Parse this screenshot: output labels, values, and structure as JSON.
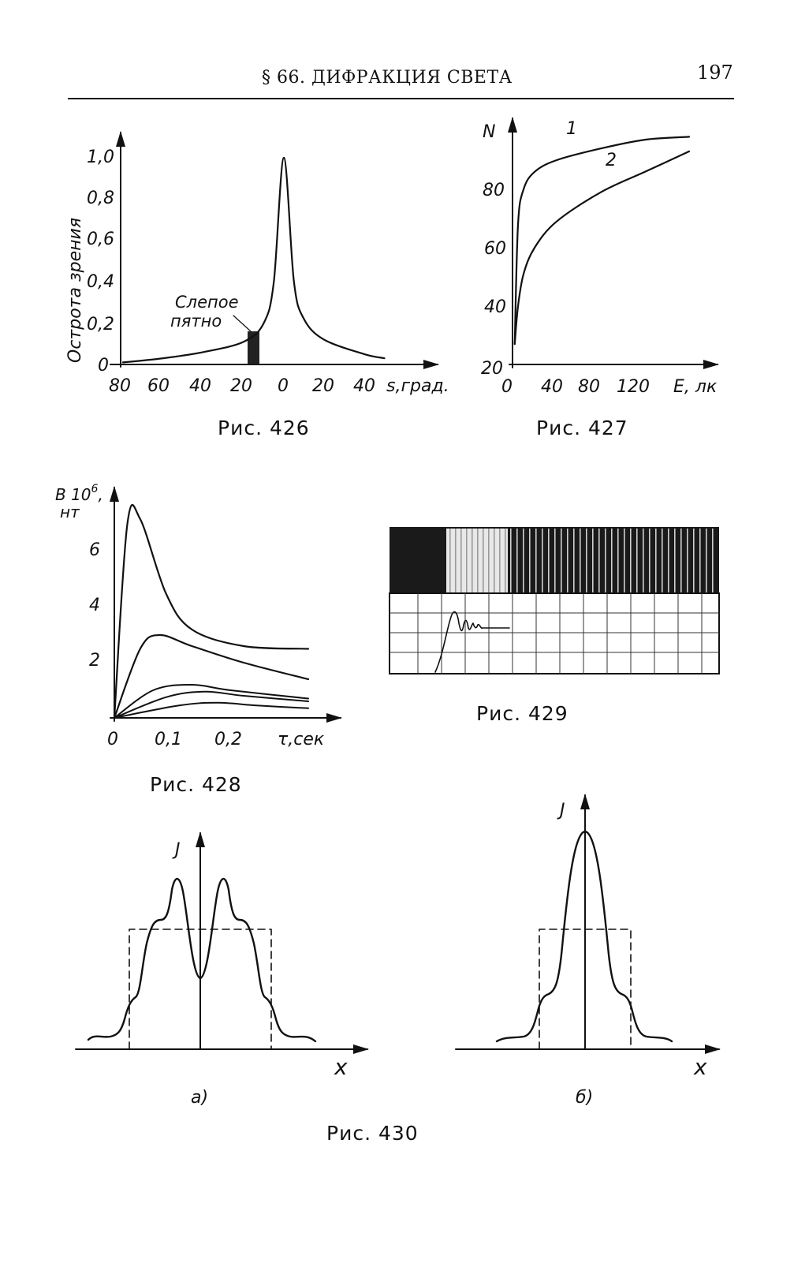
{
  "header": {
    "title": "§ 66. ДИФРАКЦИЯ СВЕТА",
    "page_number": "197"
  },
  "figures": {
    "fig426": {
      "caption": "Рис. 426",
      "ylabel": "Острота зрения",
      "xlabel": "s,град.",
      "annotation": [
        "Слепое",
        "пятно"
      ],
      "yticks": [
        "0",
        "0,2",
        "0,4",
        "0,6",
        "0,8",
        "1,0"
      ],
      "xticks": [
        "80",
        "60",
        "40",
        "20",
        "0",
        "20",
        "40"
      ]
    },
    "fig427": {
      "caption": "Рис. 427",
      "ylabel": "N",
      "xlabel": "E, лк",
      "yticks": [
        "20",
        "40",
        "60",
        "80"
      ],
      "xticks": [
        "0",
        "40",
        "80",
        "120"
      ],
      "series_labels": [
        "1",
        "2"
      ]
    },
    "fig428": {
      "caption": "Рис. 428",
      "ylabel": [
        "B 10",
        "6",
        ",",
        "нт"
      ],
      "xlabel": "τ,сек",
      "yticks": [
        "2",
        "4",
        "6"
      ],
      "xticks": [
        "0",
        "0,1",
        "0,2"
      ]
    },
    "fig429": {
      "caption": "Рис. 429"
    },
    "fig430": {
      "caption": "Рис. 430",
      "panel_a_label": "а)",
      "panel_b_label": "б)",
      "ylabel": "J",
      "xlabel": "x"
    }
  },
  "chart_data": [
    {
      "type": "line",
      "title": "Рис. 426",
      "xlabel": "s,град.",
      "ylabel": "Острота зрения",
      "series": [
        {
          "name": "",
          "x": [
            -80,
            -60,
            -40,
            -20,
            -10,
            -5,
            0,
            5,
            10,
            20,
            40,
            50
          ],
          "values": [
            0.01,
            0.03,
            0.06,
            0.11,
            0.2,
            0.4,
            1.0,
            0.4,
            0.22,
            0.12,
            0.05,
            0.03
          ]
        }
      ],
      "ylim": [
        0,
        1.0
      ]
    },
    {
      "type": "line",
      "title": "Рис. 427",
      "xlabel": "E, лк",
      "ylabel": "N",
      "series": [
        {
          "name": "1",
          "x": [
            2,
            5,
            10,
            20,
            40,
            80,
            120,
            160
          ],
          "values": [
            27,
            68,
            80,
            86,
            90,
            94,
            97,
            98
          ]
        },
        {
          "name": "2",
          "x": [
            2,
            5,
            10,
            20,
            40,
            80,
            120,
            160
          ],
          "values": [
            27,
            40,
            51,
            60,
            69,
            79,
            86,
            93
          ]
        }
      ],
      "ylim": [
        20,
        100
      ]
    },
    {
      "type": "line",
      "title": "Рис. 428",
      "xlabel": "τ,сек",
      "ylabel": "B 10⁶, нт",
      "series": [
        {
          "name": "",
          "x": [
            0,
            0.02,
            0.04,
            0.08,
            0.12,
            0.2,
            0.3
          ],
          "values": [
            0,
            7.0,
            7.2,
            4.5,
            3.2,
            2.6,
            2.5
          ]
        },
        {
          "name": "",
          "x": [
            0,
            0.04,
            0.07,
            0.12,
            0.2,
            0.3
          ],
          "values": [
            0,
            2.5,
            3.0,
            2.6,
            2.0,
            1.4
          ]
        },
        {
          "name": "",
          "x": [
            0,
            0.06,
            0.12,
            0.18,
            0.3
          ],
          "values": [
            0,
            1.0,
            1.2,
            1.0,
            0.7
          ]
        },
        {
          "name": "",
          "x": [
            0,
            0.08,
            0.14,
            0.2,
            0.3
          ],
          "values": [
            0,
            0.75,
            0.95,
            0.8,
            0.6
          ]
        },
        {
          "name": "",
          "x": [
            0,
            0.1,
            0.16,
            0.22,
            0.3
          ],
          "values": [
            0,
            0.45,
            0.55,
            0.45,
            0.35
          ]
        }
      ],
      "ylim": [
        0,
        7.5
      ]
    }
  ]
}
